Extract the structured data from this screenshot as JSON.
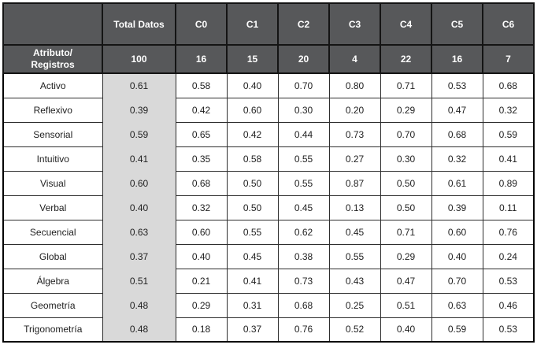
{
  "colors": {
    "header_bg": "#57585a",
    "header_text": "#ffffff",
    "total_column_bg": "#d9d9d9",
    "grid_border": "#2e2e2e",
    "outer_border": "#000000",
    "cell_bg": "#ffffff",
    "cell_text": "#1f1f1f"
  },
  "chart_data": {
    "type": "table",
    "title": "",
    "header_row_clusters": [
      "",
      "Total Datos",
      "C0",
      "C1",
      "C2",
      "C3",
      "C4",
      "C5",
      "C6"
    ],
    "header_row_records": [
      "Atributo/\nRegistros",
      "100",
      "16",
      "15",
      "20",
      "4",
      "22",
      "16",
      "7"
    ],
    "rows": [
      {
        "label": "Activo",
        "values": [
          "0.61",
          "0.58",
          "0.40",
          "0.70",
          "0.80",
          "0.71",
          "0.53",
          "0.68"
        ]
      },
      {
        "label": "Reflexivo",
        "values": [
          "0.39",
          "0.42",
          "0.60",
          "0.30",
          "0.20",
          "0.29",
          "0.47",
          "0.32"
        ]
      },
      {
        "label": "Sensorial",
        "values": [
          "0.59",
          "0.65",
          "0.42",
          "0.44",
          "0.73",
          "0.70",
          "0.68",
          "0.59"
        ]
      },
      {
        "label": "Intuitivo",
        "values": [
          "0.41",
          "0.35",
          "0.58",
          "0.55",
          "0.27",
          "0.30",
          "0.32",
          "0.41"
        ]
      },
      {
        "label": "Visual",
        "values": [
          "0.60",
          "0.68",
          "0.50",
          "0.55",
          "0.87",
          "0.50",
          "0.61",
          "0.89"
        ]
      },
      {
        "label": "Verbal",
        "values": [
          "0.40",
          "0.32",
          "0.50",
          "0.45",
          "0.13",
          "0.50",
          "0.39",
          "0.11"
        ]
      },
      {
        "label": "Secuencial",
        "values": [
          "0.63",
          "0.60",
          "0.55",
          "0.62",
          "0.45",
          "0.71",
          "0.60",
          "0.76"
        ]
      },
      {
        "label": "Global",
        "values": [
          "0.37",
          "0.40",
          "0.45",
          "0.38",
          "0.55",
          "0.29",
          "0.40",
          "0.24"
        ]
      },
      {
        "label": "Álgebra",
        "values": [
          "0.51",
          "0.21",
          "0.41",
          "0.73",
          "0.43",
          "0.47",
          "0.70",
          "0.53"
        ]
      },
      {
        "label": "Geometría",
        "values": [
          "0.48",
          "0.29",
          "0.31",
          "0.68",
          "0.25",
          "0.51",
          "0.63",
          "0.46"
        ]
      },
      {
        "label": "Trigonometría",
        "values": [
          "0.48",
          "0.18",
          "0.37",
          "0.76",
          "0.52",
          "0.40",
          "0.59",
          "0.53"
        ]
      }
    ]
  }
}
